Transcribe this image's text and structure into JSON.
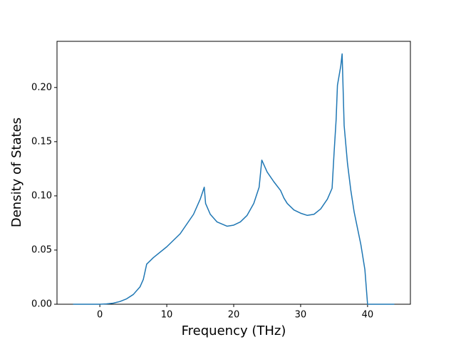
{
  "chart_data": {
    "type": "line",
    "xlabel": "Frequency (THz)",
    "ylabel": "Density of States",
    "x": [
      -4,
      0,
      1,
      2,
      3,
      4,
      5,
      6,
      6.5,
      7,
      7.5,
      8,
      10,
      12,
      14,
      15,
      15.6,
      15.8,
      16.5,
      17.5,
      19,
      20,
      21,
      22,
      23,
      23.8,
      24.2,
      25,
      26,
      27,
      27.5,
      28,
      29,
      30,
      31,
      32,
      33,
      34,
      34.7,
      35,
      35.3,
      35.5,
      36,
      36.2,
      36.5,
      37,
      37.5,
      38,
      39,
      39.6,
      40,
      44
    ],
    "values": [
      0,
      0,
      0.0003,
      0.001,
      0.0025,
      0.005,
      0.009,
      0.016,
      0.023,
      0.037,
      0.04,
      0.043,
      0.053,
      0.065,
      0.083,
      0.097,
      0.108,
      0.093,
      0.083,
      0.076,
      0.072,
      0.073,
      0.076,
      0.082,
      0.093,
      0.108,
      0.133,
      0.122,
      0.113,
      0.105,
      0.098,
      0.093,
      0.087,
      0.084,
      0.082,
      0.083,
      0.088,
      0.097,
      0.107,
      0.14,
      0.17,
      0.202,
      0.22,
      0.231,
      0.165,
      0.13,
      0.105,
      0.085,
      0.055,
      0.032,
      0,
      0
    ],
    "color": "#1f77b4",
    "xlim": [
      -6.4,
      46.4
    ],
    "ylim": [
      0,
      0.2426
    ],
    "xticks": [
      0,
      10,
      20,
      30,
      40
    ],
    "yticks": [
      {
        "value": 0,
        "label": "0.00"
      },
      {
        "value": 0.05,
        "label": "0.05"
      },
      {
        "value": 0.1,
        "label": "0.10"
      },
      {
        "value": 0.15,
        "label": "0.15"
      },
      {
        "value": 0.2,
        "label": "0.20"
      }
    ]
  }
}
